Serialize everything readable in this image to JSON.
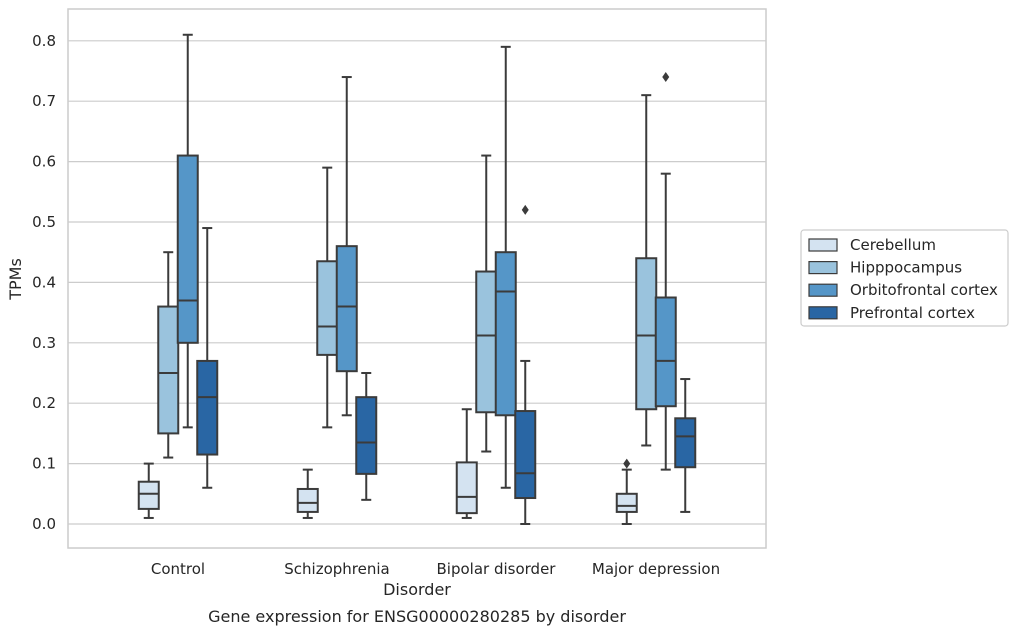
{
  "caption": "Gene expression for ENSG00000280285 by disorder",
  "chart_data": {
    "type": "box",
    "xlabel": "Disorder",
    "ylabel": "TPMs",
    "ylim": [
      -0.04,
      0.85
    ],
    "yticks": [
      0.0,
      0.1,
      0.2,
      0.3,
      0.4,
      0.5,
      0.6,
      0.7,
      0.8
    ],
    "ytick_labels": [
      "0.0",
      "0.1",
      "0.2",
      "0.3",
      "0.4",
      "0.5",
      "0.6",
      "0.7",
      "0.8"
    ],
    "grid": "horizontal",
    "legend_position": "right",
    "categories": [
      "Control",
      "Schizophrenia",
      "Bipolar disorder",
      "Major depression"
    ],
    "series": [
      {
        "name": "Cerebellum",
        "color": "#d4e3f1",
        "boxes": [
          {
            "whisker_low": 0.01,
            "q1": 0.025,
            "median": 0.05,
            "q3": 0.07,
            "whisker_high": 0.1,
            "outliers": []
          },
          {
            "whisker_low": 0.01,
            "q1": 0.02,
            "median": 0.035,
            "q3": 0.058,
            "whisker_high": 0.09,
            "outliers": []
          },
          {
            "whisker_low": 0.01,
            "q1": 0.018,
            "median": 0.045,
            "q3": 0.102,
            "whisker_high": 0.19,
            "outliers": []
          },
          {
            "whisker_low": 0.0,
            "q1": 0.02,
            "median": 0.03,
            "q3": 0.05,
            "whisker_high": 0.09,
            "outliers": [
              0.1
            ]
          }
        ]
      },
      {
        "name": "Hipppocampus",
        "color": "#9ac3dd",
        "boxes": [
          {
            "whisker_low": 0.11,
            "q1": 0.15,
            "median": 0.25,
            "q3": 0.36,
            "whisker_high": 0.45,
            "outliers": []
          },
          {
            "whisker_low": 0.16,
            "q1": 0.28,
            "median": 0.327,
            "q3": 0.435,
            "whisker_high": 0.59,
            "outliers": []
          },
          {
            "whisker_low": 0.12,
            "q1": 0.185,
            "median": 0.312,
            "q3": 0.418,
            "whisker_high": 0.61,
            "outliers": []
          },
          {
            "whisker_low": 0.13,
            "q1": 0.19,
            "median": 0.312,
            "q3": 0.44,
            "whisker_high": 0.71,
            "outliers": []
          }
        ]
      },
      {
        "name": "Orbitofrontal cortex",
        "color": "#5596c8",
        "boxes": [
          {
            "whisker_low": 0.16,
            "q1": 0.3,
            "median": 0.37,
            "q3": 0.61,
            "whisker_high": 0.81,
            "outliers": []
          },
          {
            "whisker_low": 0.18,
            "q1": 0.253,
            "median": 0.36,
            "q3": 0.46,
            "whisker_high": 0.74,
            "outliers": []
          },
          {
            "whisker_low": 0.06,
            "q1": 0.18,
            "median": 0.385,
            "q3": 0.45,
            "whisker_high": 0.79,
            "outliers": []
          },
          {
            "whisker_low": 0.09,
            "q1": 0.195,
            "median": 0.27,
            "q3": 0.375,
            "whisker_high": 0.58,
            "outliers": [
              0.74
            ]
          }
        ]
      },
      {
        "name": "Prefrontal cortex",
        "color": "#2966a4",
        "boxes": [
          {
            "whisker_low": 0.06,
            "q1": 0.115,
            "median": 0.21,
            "q3": 0.27,
            "whisker_high": 0.49,
            "outliers": []
          },
          {
            "whisker_low": 0.04,
            "q1": 0.083,
            "median": 0.135,
            "q3": 0.21,
            "whisker_high": 0.25,
            "outliers": []
          },
          {
            "whisker_low": 0.0,
            "q1": 0.043,
            "median": 0.084,
            "q3": 0.187,
            "whisker_high": 0.27,
            "outliers": [
              0.52
            ]
          },
          {
            "whisker_low": 0.02,
            "q1": 0.094,
            "median": 0.145,
            "q3": 0.175,
            "whisker_high": 0.24,
            "outliers": []
          }
        ]
      }
    ]
  }
}
